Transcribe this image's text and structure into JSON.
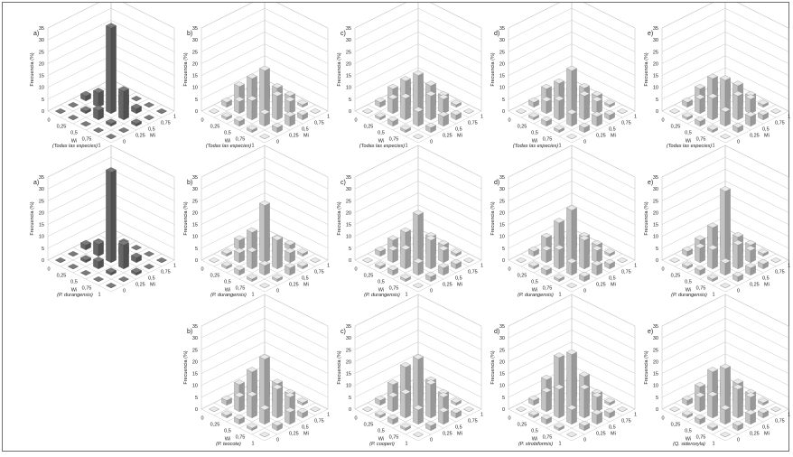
{
  "axis": {
    "y_label": "Frecuencia (%)",
    "y_ticks": [
      "0",
      "5",
      "10",
      "15",
      "20",
      "25",
      "30",
      "35"
    ],
    "wi_label": "Wi",
    "mi_label": "Mi",
    "wi_ticks": [
      "0",
      "0,25",
      "0,5",
      "0,75",
      "1"
    ],
    "mi_ticks": [
      "0",
      "0,25",
      "0,5",
      "0,75",
      "1"
    ],
    "ylim": [
      0,
      35
    ],
    "grid": true
  },
  "colors": {
    "dark_bar": "#6f6f6f",
    "light_bar": "#d4d4d4",
    "mid_bar": "#9a9a9a",
    "grid": "#c8c8c8",
    "border": "#6f6f6f"
  },
  "chart_data": [
    {
      "panel": "a)",
      "caption": "(Todas las especies)",
      "type": "bar3d",
      "tone": "dark",
      "values": [
        [
          0,
          0,
          2,
          0,
          0
        ],
        [
          0,
          1,
          6,
          0,
          0
        ],
        [
          0,
          4,
          36,
          4,
          0
        ],
        [
          0,
          1,
          12,
          2,
          0
        ],
        [
          0,
          0,
          1,
          0,
          0
        ]
      ]
    },
    {
      "panel": "b)",
      "caption": "(Todas las especies)",
      "type": "bar3d",
      "tone": "light",
      "values": [
        [
          0,
          2,
          6,
          2,
          0
        ],
        [
          1,
          5,
          12,
          5,
          1
        ],
        [
          2,
          8,
          18,
          8,
          2
        ],
        [
          1,
          5,
          10,
          5,
          1
        ],
        [
          0,
          2,
          4,
          2,
          0
        ]
      ]
    },
    {
      "panel": "c)",
      "caption": "(Todas las especies)",
      "type": "bar3d",
      "tone": "light",
      "values": [
        [
          0,
          2,
          5,
          2,
          0
        ],
        [
          1,
          6,
          11,
          6,
          1
        ],
        [
          2,
          9,
          16,
          9,
          2
        ],
        [
          1,
          6,
          10,
          6,
          1
        ],
        [
          0,
          2,
          4,
          2,
          0
        ]
      ]
    },
    {
      "panel": "d)",
      "caption": "(Todas las especies)",
      "type": "bar3d",
      "tone": "light",
      "values": [
        [
          0,
          2,
          5,
          2,
          0
        ],
        [
          1,
          5,
          10,
          5,
          1
        ],
        [
          2,
          8,
          18,
          8,
          2
        ],
        [
          1,
          5,
          10,
          5,
          1
        ],
        [
          0,
          2,
          4,
          2,
          0
        ]
      ]
    },
    {
      "panel": "e)",
      "caption": "(Todas las especies)",
      "type": "bar3d",
      "tone": "light",
      "values": [
        [
          0,
          2,
          5,
          2,
          0
        ],
        [
          1,
          6,
          12,
          6,
          1
        ],
        [
          2,
          9,
          14,
          9,
          2
        ],
        [
          1,
          6,
          10,
          6,
          1
        ],
        [
          0,
          2,
          4,
          2,
          0
        ]
      ]
    },
    {
      "panel": "a)",
      "caption": "(P. durangensis)",
      "type": "bar3d",
      "tone": "dark",
      "values": [
        [
          0,
          0,
          2,
          0,
          0
        ],
        [
          0,
          1,
          5,
          0,
          0
        ],
        [
          0,
          3,
          38,
          3,
          0
        ],
        [
          0,
          1,
          10,
          2,
          0
        ],
        [
          0,
          0,
          1,
          0,
          0
        ]
      ]
    },
    {
      "panel": "b)",
      "caption": "(P. durangensis)",
      "type": "bar3d",
      "tone": "light",
      "values": [
        [
          0,
          1,
          4,
          1,
          0
        ],
        [
          1,
          4,
          10,
          4,
          1
        ],
        [
          2,
          7,
          24,
          7,
          2
        ],
        [
          1,
          4,
          12,
          4,
          1
        ],
        [
          0,
          1,
          3,
          1,
          0
        ]
      ]
    },
    {
      "panel": "c)",
      "caption": "(P. durangensis)",
      "type": "bar3d",
      "tone": "light",
      "values": [
        [
          0,
          2,
          4,
          2,
          0
        ],
        [
          1,
          5,
          10,
          5,
          1
        ],
        [
          2,
          8,
          20,
          8,
          2
        ],
        [
          1,
          5,
          12,
          5,
          1
        ],
        [
          0,
          2,
          3,
          2,
          0
        ]
      ]
    },
    {
      "panel": "d)",
      "caption": "(P. durangensis)",
      "type": "bar3d",
      "tone": "light",
      "values": [
        [
          0,
          2,
          5,
          2,
          0
        ],
        [
          1,
          5,
          14,
          5,
          1
        ],
        [
          2,
          8,
          22,
          8,
          2
        ],
        [
          1,
          5,
          12,
          5,
          1
        ],
        [
          0,
          2,
          4,
          2,
          0
        ]
      ]
    },
    {
      "panel": "e)",
      "caption": "(P. durangensis)",
      "type": "bar3d",
      "tone": "light",
      "values": [
        [
          0,
          2,
          4,
          2,
          0
        ],
        [
          1,
          6,
          12,
          6,
          1
        ],
        [
          2,
          8,
          30,
          8,
          2
        ],
        [
          1,
          5,
          10,
          5,
          1
        ],
        [
          0,
          2,
          3,
          2,
          0
        ]
      ]
    },
    {
      "panel": "b)",
      "caption": "(P. teocote)",
      "type": "bar3d",
      "tone": "light",
      "values": [
        [
          0,
          2,
          6,
          2,
          0
        ],
        [
          1,
          6,
          14,
          6,
          1
        ],
        [
          2,
          9,
          22,
          9,
          2
        ],
        [
          1,
          6,
          12,
          6,
          1
        ],
        [
          0,
          2,
          5,
          2,
          0
        ]
      ]
    },
    {
      "panel": "c)",
      "caption": "(P. cooperi)",
      "type": "bar3d",
      "tone": "light",
      "values": [
        [
          0,
          2,
          6,
          2,
          0
        ],
        [
          1,
          6,
          16,
          6,
          1
        ],
        [
          2,
          10,
          22,
          10,
          2
        ],
        [
          1,
          6,
          14,
          6,
          1
        ],
        [
          0,
          2,
          5,
          2,
          0
        ]
      ]
    },
    {
      "panel": "d)",
      "caption": "(P. strobiformis)",
      "type": "bar3d",
      "tone": "light",
      "values": [
        [
          0,
          2,
          8,
          2,
          0
        ],
        [
          1,
          8,
          20,
          8,
          1
        ],
        [
          2,
          12,
          24,
          12,
          2
        ],
        [
          1,
          6,
          12,
          6,
          1
        ],
        [
          0,
          2,
          4,
          2,
          0
        ]
      ]
    },
    {
      "panel": "e)",
      "caption": "(Q. sideroxyla)",
      "type": "bar3d",
      "tone": "light",
      "values": [
        [
          0,
          2,
          5,
          2,
          0
        ],
        [
          1,
          6,
          14,
          6,
          1
        ],
        [
          2,
          9,
          18,
          9,
          2
        ],
        [
          1,
          6,
          12,
          6,
          1
        ],
        [
          0,
          2,
          4,
          2,
          0
        ]
      ]
    }
  ]
}
